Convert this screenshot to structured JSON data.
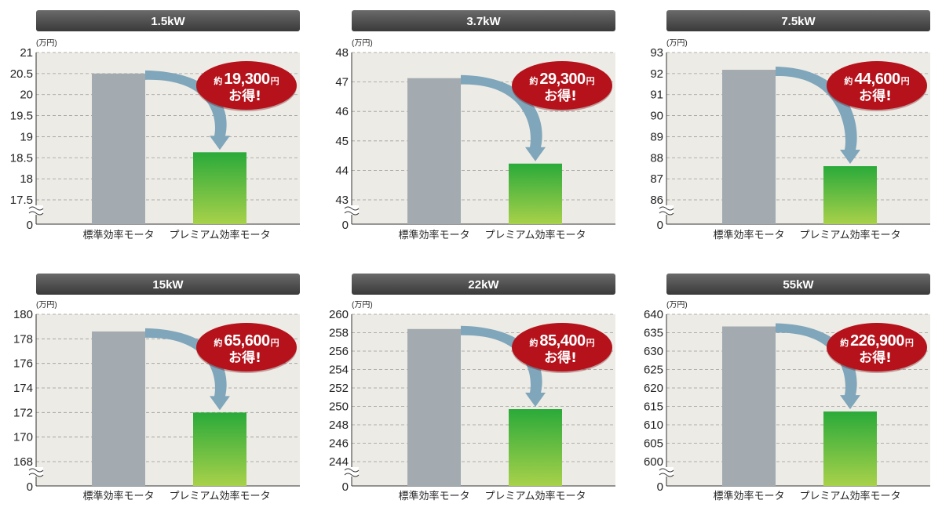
{
  "colors": {
    "header_bg": "#4a4a4a",
    "plot_bg": "#edebe5",
    "standard_bar": "#a3abb0",
    "premium_bar_top": "#2aaa3a",
    "premium_bar_bottom": "#a8d14a",
    "arrow": "#7fa6ba",
    "badge": "#b5121b"
  },
  "chart_data": [
    {
      "type": "bar",
      "title": "1.5kW",
      "unit": "(万円)",
      "categories": [
        "標準効率モータ",
        "プレミアム効率モータ"
      ],
      "values": [
        20.5,
        18.63
      ],
      "yticks": [
        "21",
        "20.5",
        "20",
        "19.5",
        "19",
        "18.5",
        "18",
        "17.5",
        "0"
      ],
      "ylim": [
        17.5,
        21
      ],
      "y_break": true,
      "badge": {
        "prefix": "約",
        "amount": "19,300",
        "suffix": "円",
        "line2": "お得!"
      }
    },
    {
      "type": "bar",
      "title": "3.7kW",
      "unit": "(万円)",
      "categories": [
        "標準効率モータ",
        "プレミアム効率モータ"
      ],
      "values": [
        47.13,
        44.23
      ],
      "yticks": [
        "48",
        "47",
        "46",
        "45",
        "44",
        "43",
        "0"
      ],
      "ylim": [
        43,
        48
      ],
      "y_break": true,
      "badge": {
        "prefix": "約",
        "amount": "29,300",
        "suffix": "円",
        "line2": "お得!"
      }
    },
    {
      "type": "bar",
      "title": "7.5kW",
      "unit": "(万円)",
      "categories": [
        "標準効率モータ",
        "プレミアム効率モータ"
      ],
      "values": [
        92.18,
        87.6
      ],
      "yticks": [
        "93",
        "92",
        "91",
        "90",
        "89",
        "88",
        "87",
        "86",
        "0"
      ],
      "ylim": [
        86,
        93
      ],
      "y_break": true,
      "badge": {
        "prefix": "約",
        "amount": "44,600",
        "suffix": "円",
        "line2": "お得!"
      }
    },
    {
      "type": "bar",
      "title": "15kW",
      "unit": "(万円)",
      "categories": [
        "標準効率モータ",
        "プレミアム効率モータ"
      ],
      "values": [
        178.6,
        172.0
      ],
      "yticks": [
        "180",
        "178",
        "176",
        "174",
        "172",
        "170",
        "168",
        "0"
      ],
      "ylim": [
        168,
        180
      ],
      "y_break": true,
      "badge": {
        "prefix": "約",
        "amount": "65,600",
        "suffix": "円",
        "line2": "お得!"
      }
    },
    {
      "type": "bar",
      "title": "22kW",
      "unit": "(万円)",
      "categories": [
        "標準効率モータ",
        "プレミアム効率モータ"
      ],
      "values": [
        258.4,
        249.7
      ],
      "yticks": [
        "260",
        "258",
        "256",
        "254",
        "252",
        "250",
        "248",
        "246",
        "244",
        "0"
      ],
      "ylim": [
        244,
        260
      ],
      "y_break": true,
      "badge": {
        "prefix": "約",
        "amount": "85,400",
        "suffix": "円",
        "line2": "お得!"
      }
    },
    {
      "type": "bar",
      "title": "55kW",
      "unit": "(万円)",
      "categories": [
        "標準効率モータ",
        "プレミアム効率モータ"
      ],
      "values": [
        636.7,
        613.6
      ],
      "yticks": [
        "640",
        "635",
        "630",
        "625",
        "620",
        "615",
        "610",
        "605",
        "600",
        "0"
      ],
      "ylim": [
        600,
        640
      ],
      "y_break": true,
      "badge": {
        "prefix": "約",
        "amount": "226,900",
        "suffix": "円",
        "line2": "お得!"
      }
    }
  ]
}
